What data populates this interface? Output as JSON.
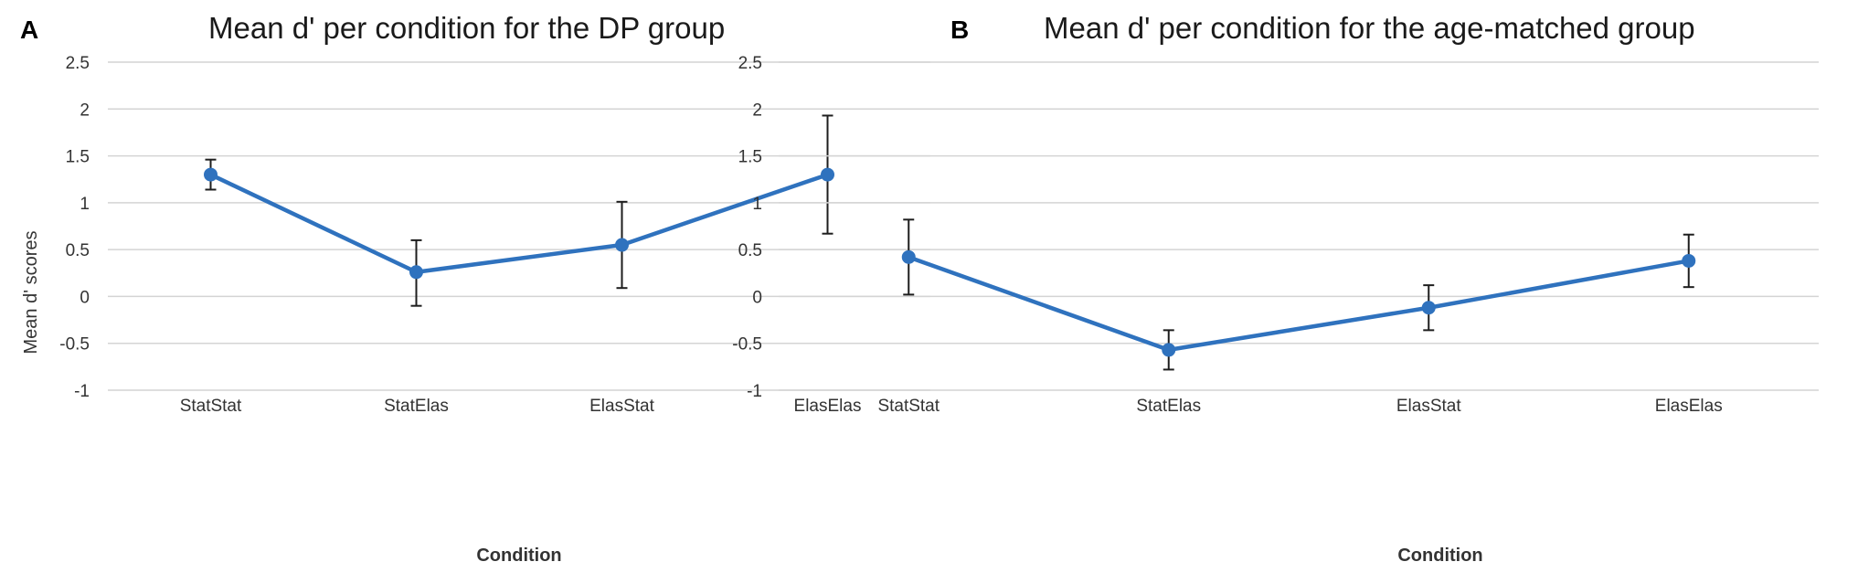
{
  "colors": {
    "series": "#2f72be",
    "grid": "#d4d4d4",
    "text": "#333333"
  },
  "chart_data": [
    {
      "type": "line",
      "panel": "A",
      "title": "Mean d' per condition for the DP group",
      "xlabel": "Condition",
      "ylabel": "Mean d' scores",
      "categories": [
        "StatStat",
        "StatElas",
        "ElasStat",
        "ElasElas"
      ],
      "ylim": [
        -1,
        2.5
      ],
      "yticks": [
        -1,
        -0.5,
        0,
        0.5,
        1,
        1.5,
        2,
        2.5
      ],
      "ytick_labels": [
        "-1",
        "-0.5",
        "0",
        "0.5",
        "1",
        "1.5",
        "2",
        "2.5"
      ],
      "grid": true,
      "series": [
        {
          "name": "DP group",
          "values": [
            1.3,
            0.26,
            0.55,
            1.3
          ],
          "error_low": [
            1.14,
            -0.1,
            0.09,
            0.67
          ],
          "error_high": [
            1.46,
            0.6,
            1.01,
            1.93
          ]
        }
      ]
    },
    {
      "type": "line",
      "panel": "B",
      "title": "Mean d' per condition for the age-matched group",
      "xlabel": "Condition",
      "ylabel": "",
      "categories": [
        "StatStat",
        "StatElas",
        "ElasStat",
        "ElasElas"
      ],
      "ylim": [
        -1,
        2.5
      ],
      "yticks": [
        -1,
        -0.5,
        0,
        0.5,
        1,
        1.5,
        2,
        2.5
      ],
      "ytick_labels": [
        "-1",
        "-0.5",
        "0",
        "0.5",
        "1",
        "1.5",
        "2",
        "2.5"
      ],
      "grid": true,
      "series": [
        {
          "name": "Age-matched group",
          "values": [
            0.42,
            -0.57,
            -0.12,
            0.38
          ],
          "error_low": [
            0.02,
            -0.78,
            -0.36,
            0.1
          ],
          "error_high": [
            0.82,
            -0.36,
            0.12,
            0.66
          ]
        }
      ]
    }
  ]
}
